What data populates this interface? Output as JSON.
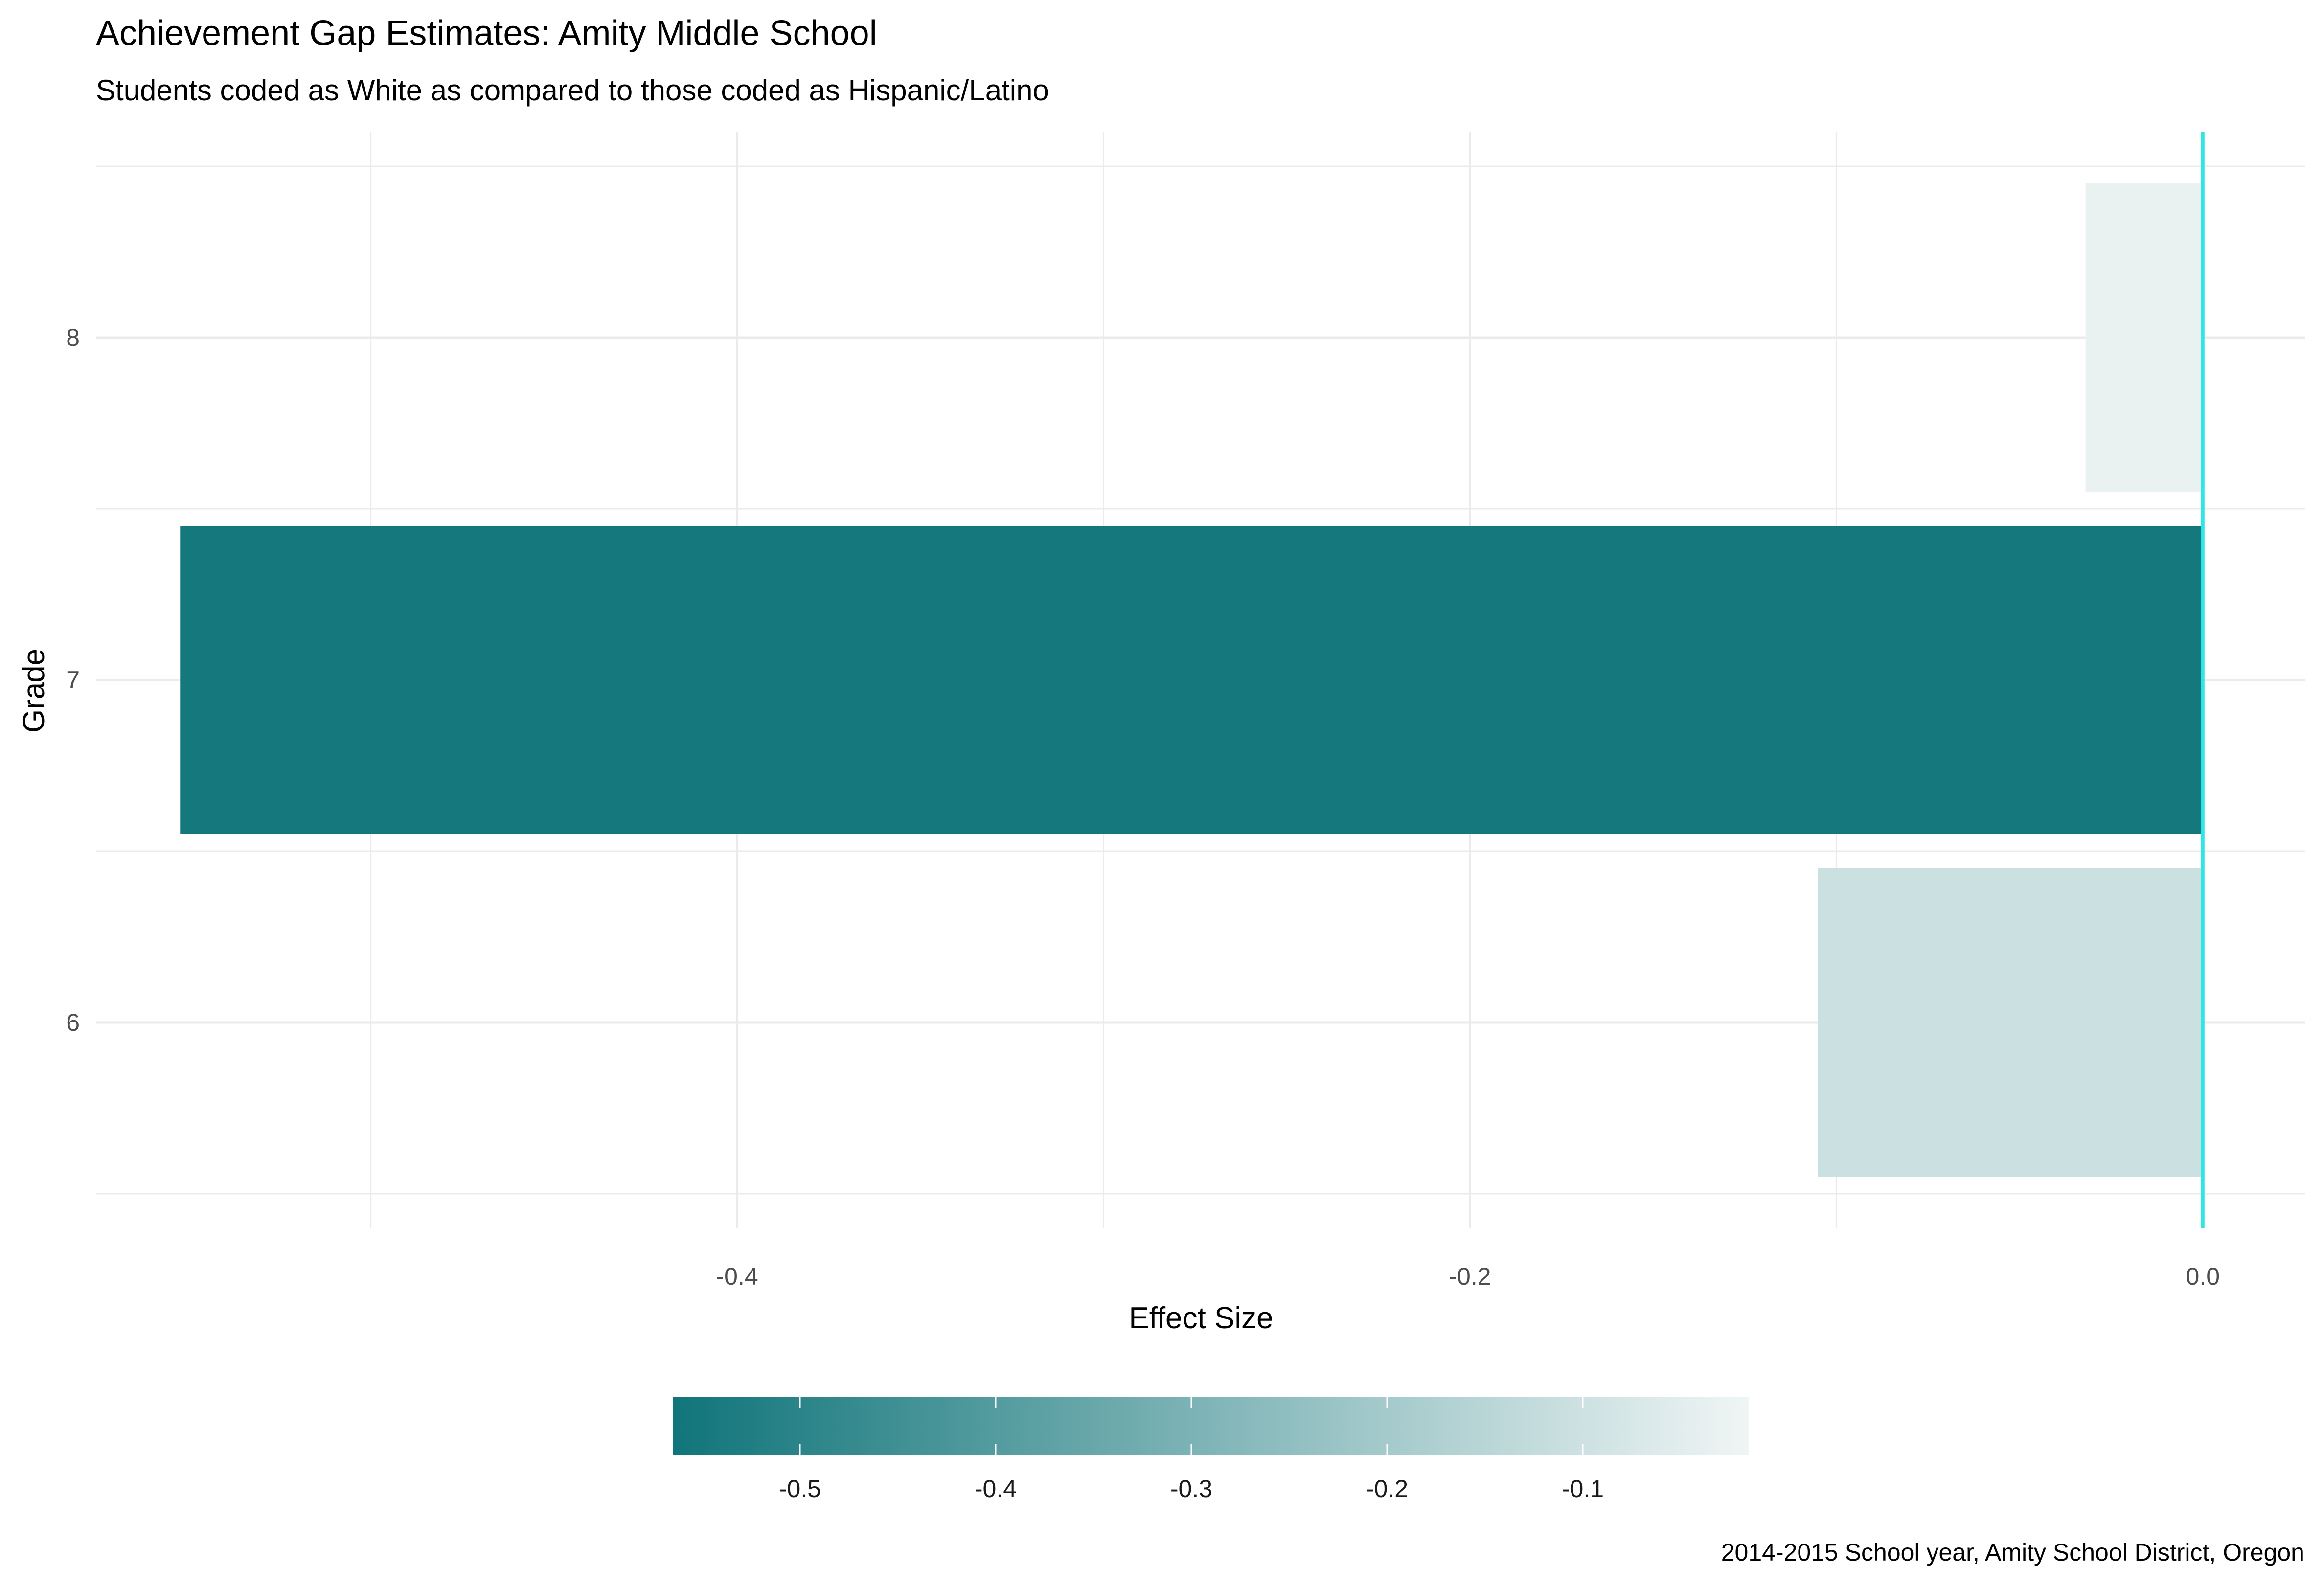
{
  "chart_data": {
    "type": "bar",
    "orientation": "horizontal",
    "title": "Achievement Gap Estimates: Amity Middle School",
    "subtitle": "Students coded as White as compared to those coded as Hispanic/Latino",
    "xlabel": "Effect Size",
    "ylabel": "Grade",
    "caption": "2014-2015 School year, Amity School District, Oregon",
    "categories": [
      "6",
      "7",
      "8"
    ],
    "values": [
      -0.105,
      -0.552,
      -0.032
    ],
    "xlim": [
      -0.575,
      0.028
    ],
    "x_ticks": [
      -0.4,
      -0.2,
      0.0
    ],
    "x_tick_labels": [
      "-0.4",
      "-0.2",
      "0.0"
    ],
    "reference_line": {
      "x": 0,
      "color": "#2ee6e6"
    },
    "grid": true,
    "legend": {
      "type": "colorbar",
      "position": "bottom",
      "range": [
        -0.565,
        -0.015
      ],
      "ticks": [
        -0.5,
        -0.4,
        -0.3,
        -0.2,
        -0.1
      ],
      "tick_labels": [
        "-0.5",
        "-0.4",
        "-0.3",
        "-0.2",
        "-0.1"
      ],
      "color_low": "#10757a",
      "color_high": "#f0f5f5"
    }
  }
}
